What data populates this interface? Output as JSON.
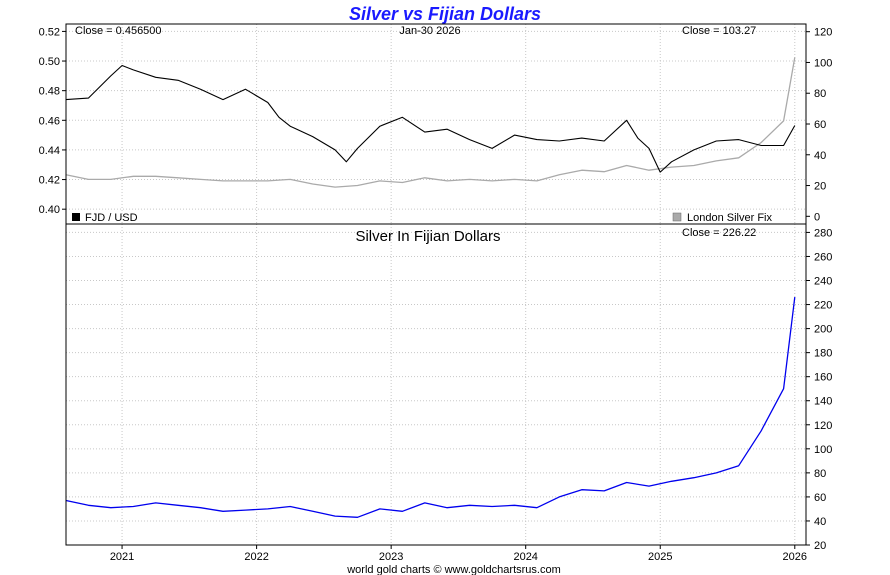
{
  "title": "Silver vs Fijian Dollars",
  "footer": "world gold charts © www.goldchartsrus.com",
  "colors": {
    "title": "#1a1aff",
    "fjd": "#000000",
    "silver_usd": "#aaaaaa",
    "silver_fjd": "#0000ee",
    "grid": "#c8c8c8"
  },
  "top_panel": {
    "close_left": "Close = 0.456500",
    "date": "Jan-30  2026",
    "close_right": "Close = 103.27",
    "legend_left": "FJD / USD",
    "legend_right": "London Silver Fix"
  },
  "bottom_panel": {
    "subtitle": "Silver In Fijian Dollars",
    "close": "Close = 226.22"
  },
  "chart_data": [
    {
      "type": "line",
      "title": "",
      "legend": "bottom",
      "grid": true,
      "x_ticks": [
        "2021",
        "2022",
        "2023",
        "2024",
        "2025",
        "2026"
      ],
      "x_range": [
        "2020-08",
        "2026-02"
      ],
      "y_left": {
        "ticks": [
          "0.40",
          "0.42",
          "0.44",
          "0.46",
          "0.48",
          "0.50",
          "0.52"
        ],
        "range": [
          0.39,
          0.525
        ]
      },
      "y_right": {
        "ticks": [
          "0",
          "20",
          "40",
          "60",
          "80",
          "100",
          "120"
        ],
        "range": [
          -5,
          125
        ]
      },
      "series": [
        {
          "name": "FJD / USD",
          "axis": "left",
          "x": [
            "2020-08",
            "2020-10",
            "2020-12",
            "2021-01",
            "2021-02",
            "2021-04",
            "2021-06",
            "2021-08",
            "2021-10",
            "2021-12",
            "2022-02",
            "2022-03",
            "2022-04",
            "2022-06",
            "2022-08",
            "2022-09",
            "2022-10",
            "2022-12",
            "2023-02",
            "2023-04",
            "2023-06",
            "2023-08",
            "2023-10",
            "2023-12",
            "2024-02",
            "2024-04",
            "2024-06",
            "2024-08",
            "2024-10",
            "2024-11",
            "2024-12",
            "2025-01",
            "2025-02",
            "2025-04",
            "2025-06",
            "2025-08",
            "2025-10",
            "2025-12",
            "2026-01"
          ],
          "values": [
            0.474,
            0.475,
            0.49,
            0.497,
            0.494,
            0.489,
            0.487,
            0.481,
            0.474,
            0.481,
            0.472,
            0.462,
            0.456,
            0.449,
            0.44,
            0.432,
            0.441,
            0.456,
            0.462,
            0.452,
            0.454,
            0.447,
            0.441,
            0.45,
            0.447,
            0.446,
            0.448,
            0.446,
            0.46,
            0.448,
            0.441,
            0.425,
            0.432,
            0.44,
            0.446,
            0.447,
            0.443,
            0.443,
            0.4565
          ]
        },
        {
          "name": "London Silver Fix",
          "axis": "right",
          "x": [
            "2020-08",
            "2020-10",
            "2020-12",
            "2021-02",
            "2021-04",
            "2021-06",
            "2021-08",
            "2021-10",
            "2021-12",
            "2022-02",
            "2022-04",
            "2022-06",
            "2022-08",
            "2022-10",
            "2022-12",
            "2023-02",
            "2023-04",
            "2023-06",
            "2023-08",
            "2023-10",
            "2023-12",
            "2024-02",
            "2024-04",
            "2024-06",
            "2024-08",
            "2024-10",
            "2024-12",
            "2025-02",
            "2025-04",
            "2025-06",
            "2025-08",
            "2025-10",
            "2025-12",
            "2026-01"
          ],
          "values": [
            27,
            24,
            24,
            26,
            26,
            25,
            24,
            23,
            23,
            23,
            24,
            21,
            19,
            20,
            23,
            22,
            25,
            23,
            24,
            23,
            24,
            23,
            27,
            30,
            29,
            33,
            30,
            32,
            33,
            36,
            38,
            48,
            62,
            103.27
          ]
        }
      ]
    },
    {
      "type": "line",
      "title": "Silver In Fijian Dollars",
      "legend": "none",
      "grid": true,
      "x_ticks": [
        "2021",
        "2022",
        "2023",
        "2024",
        "2025",
        "2026"
      ],
      "x_range": [
        "2020-08",
        "2026-02"
      ],
      "y_right": {
        "ticks": [
          "20",
          "40",
          "60",
          "80",
          "100",
          "120",
          "140",
          "160",
          "180",
          "200",
          "220",
          "240",
          "260",
          "280"
        ],
        "range": [
          20,
          287
        ]
      },
      "series": [
        {
          "name": "",
          "axis": "right",
          "x": [
            "2020-08",
            "2020-10",
            "2020-12",
            "2021-02",
            "2021-04",
            "2021-06",
            "2021-08",
            "2021-10",
            "2021-12",
            "2022-02",
            "2022-04",
            "2022-06",
            "2022-08",
            "2022-10",
            "2022-12",
            "2023-02",
            "2023-04",
            "2023-06",
            "2023-08",
            "2023-10",
            "2023-12",
            "2024-02",
            "2024-04",
            "2024-06",
            "2024-08",
            "2024-10",
            "2024-12",
            "2025-02",
            "2025-04",
            "2025-06",
            "2025-08",
            "2025-10",
            "2025-12",
            "2026-01"
          ],
          "values": [
            57,
            53,
            51,
            52,
            55,
            53,
            51,
            48,
            49,
            50,
            52,
            48,
            44,
            43,
            50,
            48,
            55,
            51,
            53,
            52,
            53,
            51,
            60,
            66,
            65,
            72,
            69,
            73,
            76,
            80,
            86,
            115,
            150,
            226.22
          ]
        }
      ]
    }
  ]
}
